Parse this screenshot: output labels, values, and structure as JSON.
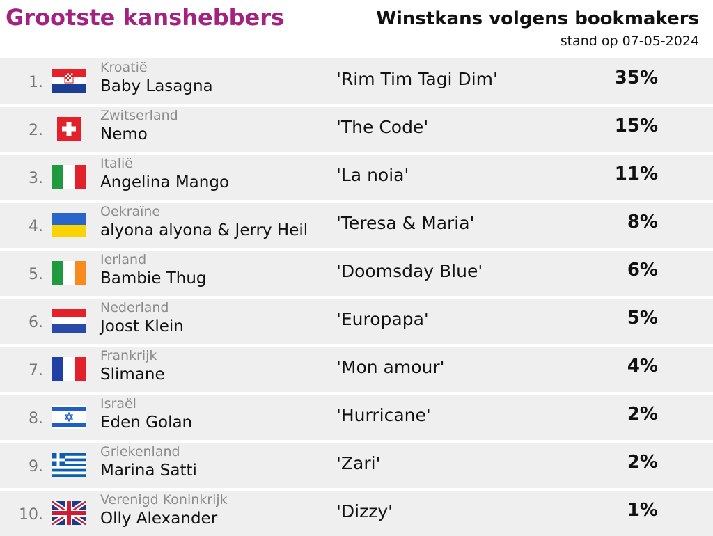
{
  "header": {
    "title": "Grootste kanshebbers",
    "subtitle": "Winstkans volgens bookmakers",
    "date": "stand op 07-05-2024"
  },
  "table": {
    "rows": [
      [
        "1.",
        "Kroatië",
        "Baby Lasagna",
        "'Rim Tim Tagi Dim'",
        "35%"
      ],
      [
        "2.",
        "Zwitserland",
        "Nemo",
        "'The Code'",
        "15%"
      ],
      [
        "3.",
        "Italië",
        "Angelina Mango",
        "'La noia'",
        "11%"
      ],
      [
        "4.",
        "Oekraïne",
        "alyona alyona & Jerry Heil",
        "'Teresa & Maria'",
        "8%"
      ],
      [
        "5.",
        "Ierland",
        "Bambie Thug",
        "'Doomsday Blue'",
        "6%"
      ],
      [
        "6.",
        "Nederland",
        "Joost Klein",
        "'Europapa'",
        "5%"
      ],
      [
        "7.",
        "Frankrijk",
        "Slimane",
        "'Mon amour'",
        "4%"
      ],
      [
        "8.",
        "Israël",
        "Eden Golan",
        "'Hurricane'",
        "2%"
      ],
      [
        "9.",
        "Griekenland",
        "Marina Satti",
        "'Zari'",
        "2%"
      ],
      [
        "10.",
        "Verenigd Koninkrijk",
        "Olly Alexander",
        "'Dizzy'",
        "1%"
      ]
    ]
  }
}
